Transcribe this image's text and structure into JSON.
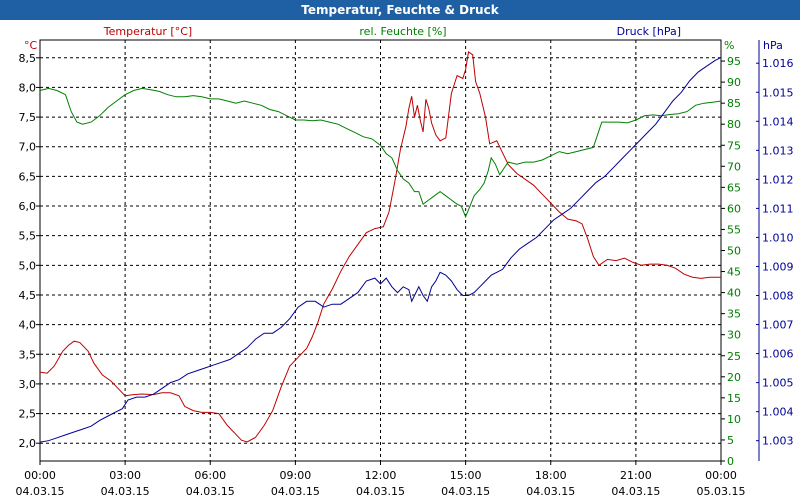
{
  "window": {
    "title": "Temperatur, Feuchte & Druck"
  },
  "chart_data": {
    "type": "line",
    "title": "Temperatur, Feuchte & Druck",
    "grid": true,
    "colors": {
      "temp": "#c00000",
      "humidity": "#008000",
      "pressure": "#000099",
      "titlebar": "#1f5fa3"
    },
    "axes": {
      "temp": {
        "unit": "°C",
        "label": "Temperatur [°C]",
        "range": [
          1.7,
          8.8
        ],
        "ticks": [
          "2,0",
          "2,5",
          "3,0",
          "3,5",
          "4,0",
          "4,5",
          "5,0",
          "5,5",
          "6,0",
          "6,5",
          "7,0",
          "7,5",
          "8,0",
          "8,5"
        ]
      },
      "humidity": {
        "unit": "%",
        "label": "rel. Feuchte [%]",
        "range": [
          0,
          100
        ],
        "ticks": [
          "0",
          "5",
          "10",
          "15",
          "20",
          "25",
          "30",
          "35",
          "40",
          "45",
          "50",
          "55",
          "60",
          "65",
          "70",
          "75",
          "80",
          "85",
          "90",
          "95"
        ]
      },
      "pressure": {
        "unit": "hPa",
        "label": "Druck [hPa]",
        "range": [
          1.0023,
          1.0168
        ],
        "ticks": [
          "1.003",
          "1.004",
          "1.005",
          "1.006",
          "1.007",
          "1.008",
          "1.009",
          "1.010",
          "1.011",
          "1.012",
          "1.013",
          "1.014",
          "1.015",
          "1.016"
        ]
      }
    },
    "x_range_hours": [
      0,
      24
    ],
    "x_ticks": [
      {
        "time": "00:00",
        "date": "04.03.15"
      },
      {
        "time": "03:00",
        "date": "04.03.15"
      },
      {
        "time": "06:00",
        "date": "04.03.15"
      },
      {
        "time": "09:00",
        "date": "04.03.15"
      },
      {
        "time": "12:00",
        "date": "04.03.15"
      },
      {
        "time": "15:00",
        "date": "04.03.15"
      },
      {
        "time": "18:00",
        "date": "04.03.15"
      },
      {
        "time": "21:00",
        "date": "04.03.15"
      },
      {
        "time": "00:00",
        "date": "05.03.15"
      }
    ],
    "series": [
      {
        "name": "Temperatur [°C]",
        "key": "temp",
        "points": [
          [
            0,
            3.2
          ],
          [
            0.25,
            3.18
          ],
          [
            0.5,
            3.3
          ],
          [
            0.8,
            3.55
          ],
          [
            1.0,
            3.65
          ],
          [
            1.2,
            3.72
          ],
          [
            1.4,
            3.7
          ],
          [
            1.7,
            3.55
          ],
          [
            1.9,
            3.35
          ],
          [
            2.2,
            3.15
          ],
          [
            2.5,
            3.05
          ],
          [
            2.8,
            2.9
          ],
          [
            3.0,
            2.8
          ],
          [
            3.3,
            2.82
          ],
          [
            3.6,
            2.83
          ],
          [
            4.0,
            2.82
          ],
          [
            4.3,
            2.85
          ],
          [
            4.6,
            2.85
          ],
          [
            4.9,
            2.8
          ],
          [
            5.1,
            2.62
          ],
          [
            5.4,
            2.55
          ],
          [
            5.7,
            2.52
          ],
          [
            6.0,
            2.52
          ],
          [
            6.3,
            2.5
          ],
          [
            6.6,
            2.3
          ],
          [
            6.9,
            2.15
          ],
          [
            7.1,
            2.05
          ],
          [
            7.3,
            2.02
          ],
          [
            7.6,
            2.1
          ],
          [
            7.9,
            2.3
          ],
          [
            8.2,
            2.55
          ],
          [
            8.5,
            2.95
          ],
          [
            8.8,
            3.3
          ],
          [
            9.1,
            3.45
          ],
          [
            9.4,
            3.6
          ],
          [
            9.6,
            3.8
          ],
          [
            9.8,
            4.05
          ],
          [
            10.0,
            4.35
          ],
          [
            10.3,
            4.6
          ],
          [
            10.6,
            4.9
          ],
          [
            10.9,
            5.15
          ],
          [
            11.2,
            5.35
          ],
          [
            11.5,
            5.55
          ],
          [
            11.8,
            5.62
          ],
          [
            12.1,
            5.65
          ],
          [
            12.3,
            5.9
          ],
          [
            12.5,
            6.4
          ],
          [
            12.7,
            6.95
          ],
          [
            12.9,
            7.35
          ],
          [
            13.0,
            7.65
          ],
          [
            13.1,
            7.85
          ],
          [
            13.2,
            7.5
          ],
          [
            13.3,
            7.7
          ],
          [
            13.4,
            7.45
          ],
          [
            13.5,
            7.25
          ],
          [
            13.6,
            7.8
          ],
          [
            13.7,
            7.65
          ],
          [
            13.8,
            7.4
          ],
          [
            13.95,
            7.2
          ],
          [
            14.1,
            7.1
          ],
          [
            14.3,
            7.15
          ],
          [
            14.5,
            7.9
          ],
          [
            14.7,
            8.2
          ],
          [
            14.9,
            8.15
          ],
          [
            15.0,
            8.3
          ],
          [
            15.1,
            8.6
          ],
          [
            15.25,
            8.55
          ],
          [
            15.35,
            8.1
          ],
          [
            15.5,
            7.9
          ],
          [
            15.7,
            7.5
          ],
          [
            15.85,
            7.05
          ],
          [
            16.1,
            7.1
          ],
          [
            16.3,
            6.9
          ],
          [
            16.5,
            6.7
          ],
          [
            16.8,
            6.55
          ],
          [
            17.1,
            6.45
          ],
          [
            17.4,
            6.35
          ],
          [
            17.7,
            6.2
          ],
          [
            18.0,
            6.05
          ],
          [
            18.3,
            5.9
          ],
          [
            18.6,
            5.78
          ],
          [
            18.9,
            5.75
          ],
          [
            19.1,
            5.7
          ],
          [
            19.3,
            5.45
          ],
          [
            19.5,
            5.15
          ],
          [
            19.7,
            5.0
          ],
          [
            20.0,
            5.1
          ],
          [
            20.3,
            5.08
          ],
          [
            20.6,
            5.12
          ],
          [
            20.9,
            5.05
          ],
          [
            21.2,
            5.0
          ],
          [
            21.5,
            5.02
          ],
          [
            21.8,
            5.02
          ],
          [
            22.1,
            5.0
          ],
          [
            22.4,
            4.95
          ],
          [
            22.7,
            4.85
          ],
          [
            23.0,
            4.8
          ],
          [
            23.3,
            4.78
          ],
          [
            23.6,
            4.8
          ],
          [
            24.0,
            4.8
          ]
        ]
      },
      {
        "name": "rel. Feuchte [%]",
        "key": "humidity",
        "points": [
          [
            0,
            88
          ],
          [
            0.3,
            88.5
          ],
          [
            0.6,
            88
          ],
          [
            0.9,
            87
          ],
          [
            1.1,
            83
          ],
          [
            1.3,
            80.5
          ],
          [
            1.5,
            80
          ],
          [
            1.8,
            80.5
          ],
          [
            2.1,
            82
          ],
          [
            2.4,
            84
          ],
          [
            2.7,
            85.5
          ],
          [
            3.0,
            87
          ],
          [
            3.3,
            88
          ],
          [
            3.6,
            88.5
          ],
          [
            3.9,
            88.2
          ],
          [
            4.2,
            87.8
          ],
          [
            4.5,
            87
          ],
          [
            4.8,
            86.5
          ],
          [
            5.1,
            86.5
          ],
          [
            5.4,
            86.8
          ],
          [
            5.7,
            86.5
          ],
          [
            6.0,
            86
          ],
          [
            6.3,
            86
          ],
          [
            6.6,
            85.5
          ],
          [
            6.9,
            85
          ],
          [
            7.2,
            85.5
          ],
          [
            7.5,
            85
          ],
          [
            7.8,
            84.5
          ],
          [
            8.1,
            83.5
          ],
          [
            8.4,
            83
          ],
          [
            8.7,
            82
          ],
          [
            9.0,
            81
          ],
          [
            9.3,
            81
          ],
          [
            9.6,
            80.8
          ],
          [
            9.9,
            81
          ],
          [
            10.2,
            80.5
          ],
          [
            10.5,
            80
          ],
          [
            10.8,
            79
          ],
          [
            11.1,
            78
          ],
          [
            11.4,
            77
          ],
          [
            11.7,
            76.5
          ],
          [
            12.0,
            75
          ],
          [
            12.2,
            73
          ],
          [
            12.4,
            72
          ],
          [
            12.6,
            69
          ],
          [
            12.8,
            67
          ],
          [
            13.0,
            66
          ],
          [
            13.2,
            64
          ],
          [
            13.35,
            64
          ],
          [
            13.5,
            61
          ],
          [
            13.7,
            62
          ],
          [
            13.9,
            63
          ],
          [
            14.1,
            64
          ],
          [
            14.3,
            63
          ],
          [
            14.5,
            62
          ],
          [
            14.7,
            61
          ],
          [
            14.85,
            60.5
          ],
          [
            15.0,
            58
          ],
          [
            15.15,
            60.5
          ],
          [
            15.3,
            63
          ],
          [
            15.5,
            64.5
          ],
          [
            15.65,
            66
          ],
          [
            15.8,
            69
          ],
          [
            15.9,
            72
          ],
          [
            16.05,
            70.5
          ],
          [
            16.2,
            68
          ],
          [
            16.35,
            69.5
          ],
          [
            16.5,
            71
          ],
          [
            16.8,
            70.5
          ],
          [
            17.1,
            71
          ],
          [
            17.4,
            71
          ],
          [
            17.7,
            71.5
          ],
          [
            18.0,
            72.5
          ],
          [
            18.3,
            73.5
          ],
          [
            18.6,
            73
          ],
          [
            18.9,
            73.5
          ],
          [
            19.2,
            74
          ],
          [
            19.5,
            74.5
          ],
          [
            19.8,
            80.5
          ],
          [
            20.1,
            80.5
          ],
          [
            20.4,
            80.5
          ],
          [
            20.7,
            80.3
          ],
          [
            21.0,
            81
          ],
          [
            21.3,
            82
          ],
          [
            21.6,
            82.2
          ],
          [
            21.9,
            82
          ],
          [
            22.2,
            82.3
          ],
          [
            22.5,
            82.5
          ],
          [
            22.8,
            83
          ],
          [
            23.1,
            84.5
          ],
          [
            23.4,
            85
          ],
          [
            23.7,
            85.2
          ],
          [
            24.0,
            85.5
          ]
        ]
      },
      {
        "name": "Druck [hPa]",
        "key": "pressure",
        "points": [
          [
            0,
            1.00295
          ],
          [
            0.3,
            1.003
          ],
          [
            0.6,
            1.0031
          ],
          [
            0.9,
            1.0032
          ],
          [
            1.2,
            1.0033
          ],
          [
            1.5,
            1.0034
          ],
          [
            1.8,
            1.0035
          ],
          [
            2.1,
            1.0037
          ],
          [
            2.4,
            1.00385
          ],
          [
            2.7,
            1.004
          ],
          [
            2.9,
            1.0041
          ],
          [
            3.1,
            1.0044
          ],
          [
            3.4,
            1.0045
          ],
          [
            3.7,
            1.0045
          ],
          [
            4.0,
            1.0046
          ],
          [
            4.3,
            1.0048
          ],
          [
            4.6,
            1.005
          ],
          [
            4.9,
            1.0051
          ],
          [
            5.2,
            1.0053
          ],
          [
            5.5,
            1.0054
          ],
          [
            5.8,
            1.0055
          ],
          [
            6.1,
            1.0056
          ],
          [
            6.4,
            1.0057
          ],
          [
            6.7,
            1.0058
          ],
          [
            7.0,
            1.006
          ],
          [
            7.3,
            1.0062
          ],
          [
            7.6,
            1.0065
          ],
          [
            7.9,
            1.0067
          ],
          [
            8.2,
            1.0067
          ],
          [
            8.5,
            1.0069
          ],
          [
            8.8,
            1.0072
          ],
          [
            9.1,
            1.0076
          ],
          [
            9.4,
            1.0078
          ],
          [
            9.7,
            1.0078
          ],
          [
            10.0,
            1.0076
          ],
          [
            10.3,
            1.0077
          ],
          [
            10.6,
            1.0077
          ],
          [
            10.9,
            1.0079
          ],
          [
            11.2,
            1.0081
          ],
          [
            11.5,
            1.0085
          ],
          [
            11.8,
            1.0086
          ],
          [
            12.0,
            1.0084
          ],
          [
            12.2,
            1.0086
          ],
          [
            12.4,
            1.0083
          ],
          [
            12.6,
            1.0081
          ],
          [
            12.8,
            1.0083
          ],
          [
            13.0,
            1.0082
          ],
          [
            13.1,
            1.0078
          ],
          [
            13.2,
            1.008
          ],
          [
            13.35,
            1.0083
          ],
          [
            13.5,
            1.008
          ],
          [
            13.65,
            1.0078
          ],
          [
            13.8,
            1.0083
          ],
          [
            13.95,
            1.0085
          ],
          [
            14.1,
            1.0088
          ],
          [
            14.3,
            1.0087
          ],
          [
            14.5,
            1.0085
          ],
          [
            14.7,
            1.0082
          ],
          [
            14.9,
            1.008
          ],
          [
            15.1,
            1.008
          ],
          [
            15.3,
            1.0081
          ],
          [
            15.5,
            1.0083
          ],
          [
            15.7,
            1.0085
          ],
          [
            15.9,
            1.0087
          ],
          [
            16.1,
            1.0088
          ],
          [
            16.3,
            1.0089
          ],
          [
            16.6,
            1.0093
          ],
          [
            16.9,
            1.0096
          ],
          [
            17.2,
            1.0098
          ],
          [
            17.5,
            1.01
          ],
          [
            17.8,
            1.0103
          ],
          [
            18.1,
            1.0106
          ],
          [
            18.4,
            1.0108
          ],
          [
            18.7,
            1.011
          ],
          [
            19.0,
            1.0113
          ],
          [
            19.3,
            1.0116
          ],
          [
            19.6,
            1.0119
          ],
          [
            19.9,
            1.0121
          ],
          [
            20.2,
            1.0124
          ],
          [
            20.5,
            1.0127
          ],
          [
            20.8,
            1.013
          ],
          [
            21.1,
            1.0133
          ],
          [
            21.4,
            1.0136
          ],
          [
            21.7,
            1.0139
          ],
          [
            22.0,
            1.0143
          ],
          [
            22.3,
            1.0147
          ],
          [
            22.6,
            1.015
          ],
          [
            22.9,
            1.0154
          ],
          [
            23.2,
            1.0157
          ],
          [
            23.5,
            1.0159
          ],
          [
            23.8,
            1.0161
          ],
          [
            24.0,
            1.0162
          ]
        ]
      }
    ]
  }
}
